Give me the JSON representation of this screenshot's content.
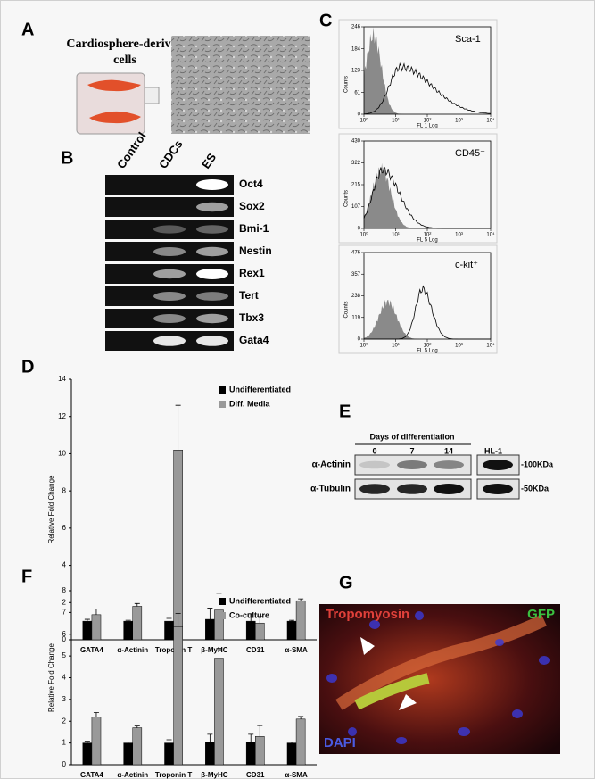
{
  "panel_labels": [
    "A",
    "B",
    "C",
    "D",
    "E",
    "F",
    "G"
  ],
  "panel_a": {
    "title_lines": [
      "Cardiosphere-derived",
      "cells"
    ]
  },
  "panel_b": {
    "columns": [
      "Control",
      "CDCs",
      "ES"
    ],
    "genes": [
      "Oct4",
      "Sox2",
      "Bmi-1",
      "Nestin",
      "Rex1",
      "Tert",
      "Tbx3",
      "Gata4"
    ]
  },
  "panel_e": {
    "header": "Days of differentiation",
    "lanes": [
      "0",
      "7",
      "14"
    ],
    "reference": "HL-1",
    "rows": [
      "α-Actinin",
      "α-Tubulin"
    ],
    "markers": [
      "-100KDa",
      "-50KDa"
    ]
  },
  "panel_g": {
    "labels": [
      "Tropomyosin",
      "GFP",
      "DAPI"
    ]
  },
  "chart_data": [
    {
      "type": "flow",
      "label": "Sca-1⁺",
      "x_label": "FL 1 Log",
      "y_label": "Counts",
      "log_x": true,
      "xlim": [
        1,
        10000
      ],
      "xticks": [
        {
          "value": 1,
          "label": "10⁰"
        },
        {
          "value": 10,
          "label": "10¹"
        },
        {
          "value": 100,
          "label": "10²"
        },
        {
          "value": 1000,
          "label": "10³"
        },
        {
          "value": 10000,
          "label": "10⁴"
        }
      ],
      "ylim": [
        0,
        246
      ],
      "yticks": [
        0,
        61,
        123,
        184,
        246
      ]
    },
    {
      "type": "flow",
      "label": "CD45⁻",
      "x_label": "FL 5 Log",
      "y_label": "Counts",
      "log_x": true,
      "xlim": [
        1,
        10000
      ],
      "xticks": [
        {
          "value": 1,
          "label": "10⁰"
        },
        {
          "value": 10,
          "label": "10¹"
        },
        {
          "value": 100,
          "label": "10²"
        },
        {
          "value": 1000,
          "label": "10³"
        },
        {
          "value": 10000,
          "label": "10⁴"
        }
      ],
      "ylim": [
        0,
        430
      ],
      "yticks": [
        0,
        107,
        215,
        322,
        430
      ]
    },
    {
      "type": "flow",
      "label": "c-kit⁺",
      "x_label": "FL 5 Log",
      "y_label": "Counts",
      "log_x": true,
      "xlim": [
        1,
        10000
      ],
      "xticks": [
        {
          "value": 1,
          "label": "10⁰"
        },
        {
          "value": 10,
          "label": "10¹"
        },
        {
          "value": 100,
          "label": "10²"
        },
        {
          "value": 1000,
          "label": "10³"
        },
        {
          "value": 10000,
          "label": "10⁴"
        }
      ],
      "ylim": [
        0,
        476
      ],
      "yticks": [
        0,
        119,
        238,
        357,
        476
      ]
    },
    {
      "type": "bar",
      "y_label": "Relative Fold Change",
      "categories": [
        "GATA4",
        "α-Actinin",
        "Troponin T",
        "β-MyHC",
        "CD31",
        "α-SMA"
      ],
      "series": [
        {
          "name": "Undifferentiated",
          "color": "#000000",
          "values": [
            1,
            1,
            1,
            1.1,
            1,
            1
          ],
          "errors": [
            0.1,
            0.05,
            0.15,
            0.6,
            0.4,
            0.05
          ]
        },
        {
          "name": "Diff. Media",
          "color": "#999999",
          "values": [
            1.35,
            1.8,
            10.2,
            1.6,
            0.9,
            2.1
          ],
          "errors": [
            0.3,
            0.15,
            2.4,
            0.9,
            0.35,
            0.1
          ]
        }
      ],
      "ylim": [
        0,
        14
      ],
      "yticks": [
        0,
        2,
        4,
        6,
        8,
        10,
        12,
        14
      ]
    },
    {
      "type": "bar",
      "y_label": "Relative Fold Change",
      "categories": [
        "GATA4",
        "α-Actinin",
        "Troponin T",
        "β-MyHC",
        "CD31",
        "α-SMA"
      ],
      "series": [
        {
          "name": "Undifferentiated",
          "color": "#000000",
          "values": [
            1,
            1,
            1,
            1.05,
            1.05,
            1
          ],
          "errors": [
            0.08,
            0.05,
            0.15,
            0.35,
            0.35,
            0.05
          ]
        },
        {
          "name": "Co-culture",
          "color": "#999999",
          "values": [
            2.2,
            1.7,
            6.35,
            4.9,
            1.3,
            2.1
          ],
          "errors": [
            0.2,
            0.08,
            0.6,
            0.45,
            0.5,
            0.12
          ]
        }
      ],
      "ylim": [
        0,
        8
      ],
      "yticks": [
        0,
        1,
        2,
        3,
        4,
        5,
        6,
        7,
        8
      ]
    }
  ]
}
